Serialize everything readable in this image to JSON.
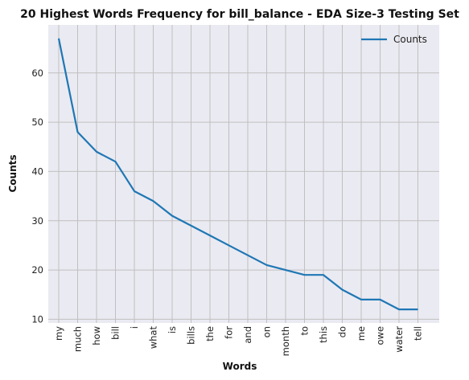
{
  "chart_data": {
    "type": "line",
    "title": "20 Highest Words Frequency for bill_balance - EDA Size-3 Testing Set",
    "xlabel": "Words",
    "ylabel": "Counts",
    "categories": [
      "my",
      "much",
      "how",
      "bill",
      "i",
      "what",
      "is",
      "bills",
      "the",
      "for",
      "and",
      "on",
      "month",
      "to",
      "this",
      "do",
      "me",
      "owe",
      "water",
      "tell"
    ],
    "series": [
      {
        "name": "Counts",
        "values": [
          67,
          48,
          44,
          42,
          36,
          34,
          31,
          29,
          27,
          25,
          23,
          21,
          20,
          19,
          19,
          16,
          14,
          14,
          12,
          12
        ]
      }
    ],
    "yticks": [
      10,
      20,
      30,
      40,
      50,
      60
    ],
    "ylim": [
      9.25,
      69.75
    ],
    "grid": true,
    "legend": "top-right",
    "colors": {
      "line": "#1f77b4",
      "plot_bg": "#eaeaf2",
      "grid": "#c0c0c0"
    }
  }
}
